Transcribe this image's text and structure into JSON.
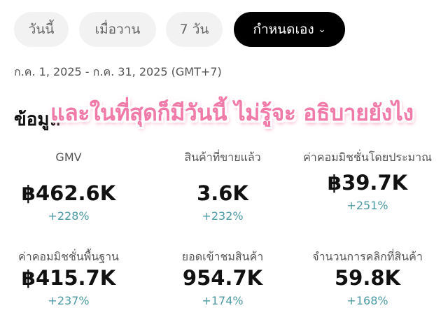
{
  "filters": {
    "items": [
      {
        "label": "วันนี้"
      },
      {
        "label": "เมื่อวาน"
      },
      {
        "label": "7 วัน"
      },
      {
        "label": "กำหนดเอง"
      }
    ],
    "active_index": 3,
    "dropdown_icon": "chevron-down-icon"
  },
  "date_range": "ก.ค. 1, 2025 - ก.ค. 31, 2025 (GMT+7)",
  "section_title": "ข้อมูล",
  "overlay_caption": "และในที่สุดก็มีวันนี้ ไม่รู้จะ อธิบายยังไง",
  "metrics": [
    {
      "label": "GMV",
      "value": "฿462.6K",
      "change": "+228%"
    },
    {
      "label": "สินค้าที่ขายแล้ว",
      "value": "3.6K",
      "change": "+232%"
    },
    {
      "label": "ค่าคอมมิชชั่นโดยประมาณ",
      "value": "฿39.7K",
      "change": "+251%"
    },
    {
      "label": "ค่าคอมมิชชั่นพื้นฐาน",
      "value": "฿415.7K",
      "change": "+237%"
    },
    {
      "label": "ยอดเข้าชมสินค้า",
      "value": "954.7K",
      "change": "+174%"
    },
    {
      "label": "จำนวนการคลิกที่สินค้า",
      "value": "59.8K",
      "change": "+168%"
    }
  ],
  "colors": {
    "positive_change": "#4c9aa3",
    "active_pill": "#000000",
    "overlay_text": "#f07aa8"
  }
}
